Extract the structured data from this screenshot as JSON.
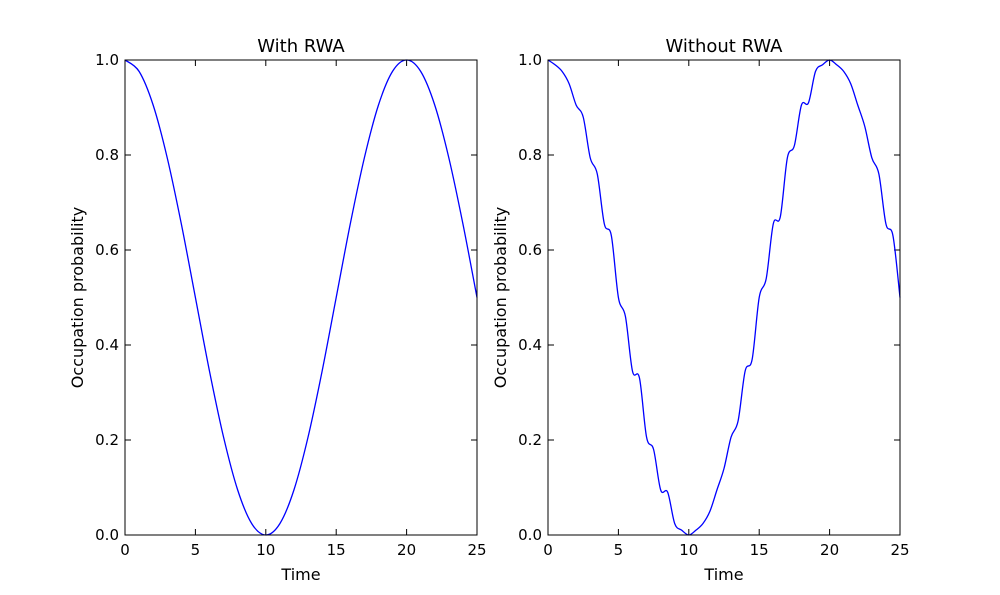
{
  "colors": {
    "line": "#0000ff",
    "axis": "#000000",
    "background": "#ffffff"
  },
  "chart_data": [
    {
      "type": "line",
      "title": "With RWA",
      "xlabel": "Time",
      "ylabel": "Occupation probability",
      "xlim": [
        0,
        25
      ],
      "ylim": [
        0,
        1
      ],
      "xticks": [
        0,
        5,
        10,
        15,
        20,
        25
      ],
      "yticks": [
        0.0,
        0.2,
        0.4,
        0.6,
        0.8,
        1.0
      ],
      "xtick_labels": [
        "0",
        "5",
        "10",
        "15",
        "20",
        "25"
      ],
      "ytick_labels": [
        "0.0",
        "0.2",
        "0.4",
        "0.6",
        "0.8",
        "1.0"
      ],
      "grid": false,
      "series": [
        {
          "x": [
            0,
            1,
            2,
            3,
            4,
            5,
            6,
            7,
            8,
            9,
            10,
            11,
            12,
            13,
            14,
            15,
            16,
            17,
            18,
            19,
            20,
            21,
            22,
            23,
            24,
            25
          ],
          "values": [
            1.0,
            0.976,
            0.905,
            0.794,
            0.655,
            0.5,
            0.345,
            0.206,
            0.095,
            0.024,
            0.0,
            0.024,
            0.095,
            0.206,
            0.345,
            0.5,
            0.655,
            0.794,
            0.905,
            0.976,
            1.0,
            0.976,
            0.905,
            0.794,
            0.655,
            0.5
          ]
        }
      ]
    },
    {
      "type": "line",
      "title": "Without RWA",
      "xlabel": "Time",
      "ylabel": "Occupation probability",
      "xlim": [
        0,
        25
      ],
      "ylim": [
        0,
        1
      ],
      "xticks": [
        0,
        5,
        10,
        15,
        20,
        25
      ],
      "yticks": [
        0.0,
        0.2,
        0.4,
        0.6,
        0.8,
        1.0
      ],
      "xtick_labels": [
        "0",
        "5",
        "10",
        "15",
        "20",
        "25"
      ],
      "ytick_labels": [
        "0.0",
        "0.2",
        "0.4",
        "0.6",
        "0.8",
        "1.0"
      ],
      "grid": false,
      "series": [
        {
          "x": [
            0,
            0.5,
            1,
            1.5,
            2,
            2.5,
            3,
            3.5,
            4,
            4.5,
            5,
            5.5,
            6,
            6.5,
            7,
            7.5,
            8,
            8.5,
            9,
            9.5,
            10,
            10.5,
            11,
            11.5,
            12,
            12.5,
            13,
            13.5,
            14,
            14.5,
            15,
            15.5,
            16,
            16.5,
            17,
            17.5,
            18,
            18.5,
            19,
            19.5,
            20,
            20.5,
            21,
            21.5,
            22,
            22.5,
            23,
            23.5,
            24,
            24.5,
            25
          ],
          "values": [
            1.0,
            0.99,
            0.976,
            0.95,
            0.905,
            0.88,
            0.794,
            0.76,
            0.655,
            0.63,
            0.5,
            0.46,
            0.345,
            0.33,
            0.206,
            0.18,
            0.095,
            0.09,
            0.024,
            0.01,
            0.0,
            0.01,
            0.024,
            0.05,
            0.095,
            0.14,
            0.206,
            0.24,
            0.345,
            0.37,
            0.5,
            0.54,
            0.655,
            0.67,
            0.794,
            0.82,
            0.905,
            0.91,
            0.976,
            0.99,
            1.0,
            0.99,
            0.976,
            0.95,
            0.905,
            0.86,
            0.794,
            0.76,
            0.655,
            0.63,
            0.5
          ]
        }
      ]
    }
  ]
}
